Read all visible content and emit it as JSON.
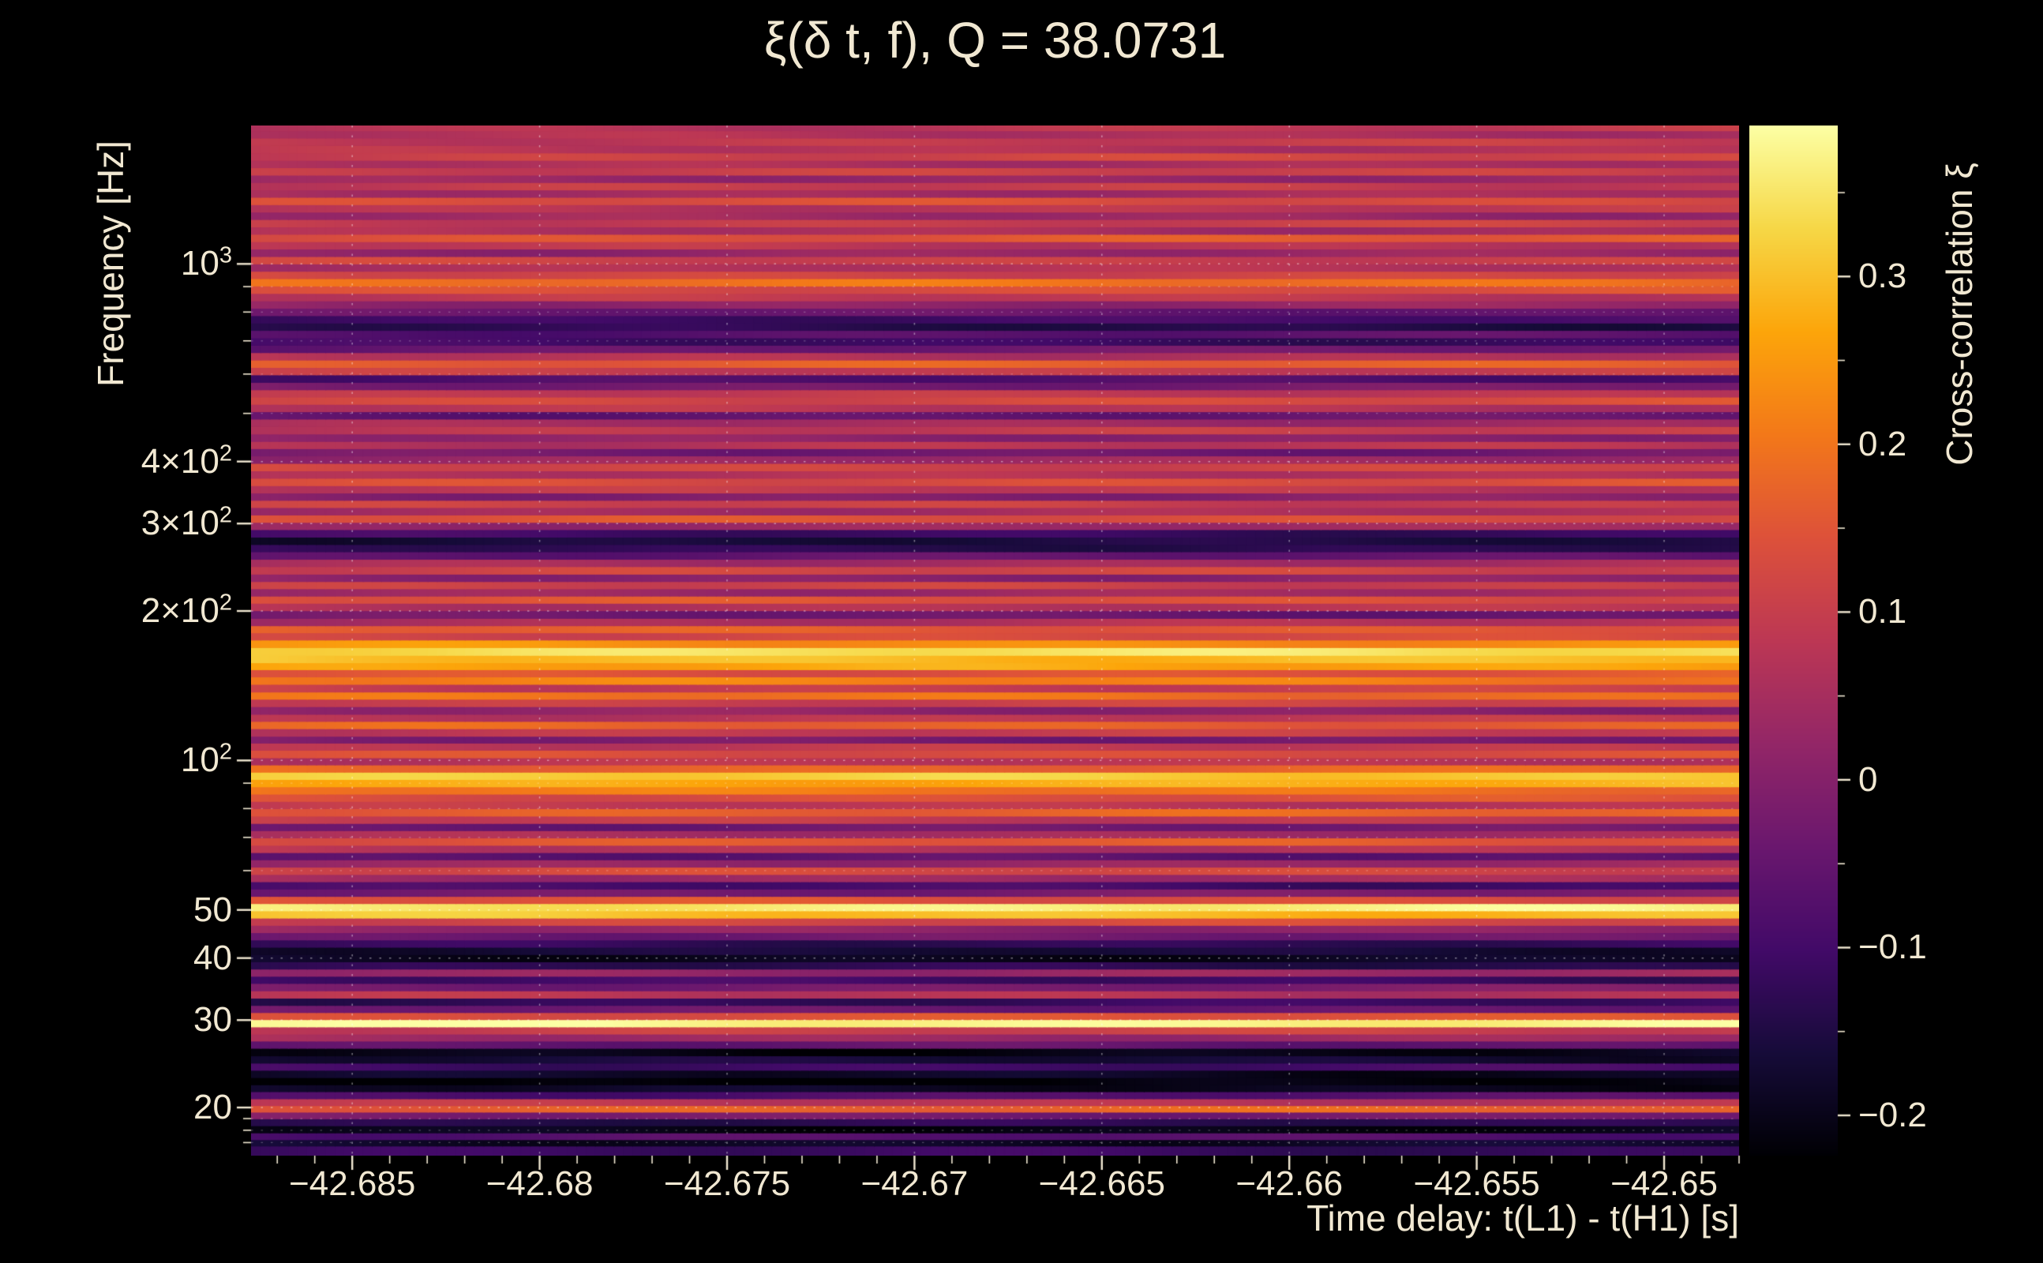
{
  "chart_data": {
    "type": "heatmap",
    "title": "ξ(δ t, f), Q = 38.0731",
    "xlabel": "Time delay: t(L1) - t(H1) [s]",
    "ylabel": "Frequency [Hz]",
    "colorbar_label": "Cross-correlation ξ",
    "background_color": "#000000",
    "text_color": "#f1e8d2",
    "grid": {
      "on": true,
      "color": "#ffffff",
      "style": "dotted"
    },
    "x_range": [
      -42.6877,
      -42.648
    ],
    "y_range_hz": [
      16,
      1900
    ],
    "y_scale": "log",
    "value_range": [
      -0.224,
      0.39
    ],
    "x_ticks": [
      -42.685,
      -42.68,
      -42.675,
      -42.67,
      -42.665,
      -42.66,
      -42.655,
      -42.65
    ],
    "x_tick_labels": [
      "−42.685",
      "−42.68",
      "−42.675",
      "−42.67",
      "−42.665",
      "−42.66",
      "−42.655",
      "−42.65"
    ],
    "x_minor_step": 0.001,
    "y_ticks": [
      {
        "f": 20,
        "base": "20",
        "exp": ""
      },
      {
        "f": 30,
        "base": "30",
        "exp": ""
      },
      {
        "f": 40,
        "base": "40",
        "exp": ""
      },
      {
        "f": 50,
        "base": "50",
        "exp": ""
      },
      {
        "f": 100,
        "base": "10",
        "exp": "2"
      },
      {
        "f": 200,
        "base": "2×10",
        "exp": "2"
      },
      {
        "f": 300,
        "base": "3×10",
        "exp": "2"
      },
      {
        "f": 400,
        "base": "4×10",
        "exp": "2"
      },
      {
        "f": 1000,
        "base": "10",
        "exp": "3"
      }
    ],
    "y_minor_ticks": [
      17,
      18,
      19,
      60,
      70,
      80,
      90,
      500,
      600,
      700,
      800,
      900
    ],
    "colorbar_ticks": [
      {
        "v": 0.3,
        "label": "0.3"
      },
      {
        "v": 0.2,
        "label": "0.2"
      },
      {
        "v": 0.1,
        "label": "0.1"
      },
      {
        "v": 0,
        "label": "0"
      },
      {
        "v": -0.1,
        "label": "−0.1"
      },
      {
        "v": -0.2,
        "label": "−0.2"
      }
    ],
    "colorbar_minor_step": 0.05,
    "colormap": [
      [
        0.0,
        "#000004"
      ],
      [
        0.1,
        "#160b39"
      ],
      [
        0.2,
        "#420a68"
      ],
      [
        0.3,
        "#6a176e"
      ],
      [
        0.4,
        "#932667"
      ],
      [
        0.5,
        "#bc3754"
      ],
      [
        0.6,
        "#dd513a"
      ],
      [
        0.7,
        "#f37819"
      ],
      [
        0.8,
        "#fca50a"
      ],
      [
        0.9,
        "#f6d746"
      ],
      [
        1.0,
        "#fcffa4"
      ]
    ],
    "rows_format": [
      "frequency_hz",
      "cross_correlation_xi"
    ],
    "rows": [
      [
        16.5,
        -0.12
      ],
      [
        17,
        -0.18
      ],
      [
        17.5,
        -0.08
      ],
      [
        18.1,
        -0.2
      ],
      [
        18.7,
        -0.14
      ],
      [
        19.3,
        -0.02
      ],
      [
        19.9,
        0.17
      ],
      [
        20.5,
        0.08
      ],
      [
        21.2,
        -0.08
      ],
      [
        21.9,
        -0.19
      ],
      [
        22.6,
        -0.22
      ],
      [
        23.4,
        -0.19
      ],
      [
        24.2,
        -0.1
      ],
      [
        25,
        -0.17
      ],
      [
        25.9,
        -0.2
      ],
      [
        26.8,
        -0.06
      ],
      [
        27.7,
        0.04
      ],
      [
        28.6,
        0.1
      ],
      [
        29.6,
        0.38
      ],
      [
        30.6,
        0.14
      ],
      [
        31.6,
        -0.04
      ],
      [
        32.7,
        -0.12
      ],
      [
        33.8,
        0.07
      ],
      [
        35,
        -0.02
      ],
      [
        36.2,
        -0.11
      ],
      [
        37.4,
        0.03
      ],
      [
        38.7,
        -0.14
      ],
      [
        40,
        -0.19
      ],
      [
        41.4,
        -0.17
      ],
      [
        42.8,
        -0.12
      ],
      [
        44.3,
        -0.04
      ],
      [
        45.8,
        0.02
      ],
      [
        47.4,
        0.12
      ],
      [
        49,
        0.3
      ],
      [
        50.7,
        0.36
      ],
      [
        52.4,
        0.14
      ],
      [
        54.2,
        -0.02
      ],
      [
        56.1,
        -0.1
      ],
      [
        58,
        0.04
      ],
      [
        60,
        0.12
      ],
      [
        62.1,
        0.03
      ],
      [
        64.2,
        -0.07
      ],
      [
        66.4,
        0.07
      ],
      [
        68.7,
        0.15
      ],
      [
        71.1,
        0.05
      ],
      [
        73.5,
        -0.04
      ],
      [
        76,
        0.09
      ],
      [
        78.7,
        0.17
      ],
      [
        81.4,
        0.08
      ],
      [
        84.2,
        0.14
      ],
      [
        87.1,
        0.2
      ],
      [
        90.1,
        0.28
      ],
      [
        93.2,
        0.31
      ],
      [
        96.4,
        0.18
      ],
      [
        99.7,
        0.07
      ],
      [
        103,
        0.14
      ],
      [
        107,
        0.08
      ],
      [
        110,
        -0.02
      ],
      [
        114,
        0.09
      ],
      [
        118,
        0.17
      ],
      [
        122,
        0.08
      ],
      [
        126,
        0.01
      ],
      [
        131,
        0.11
      ],
      [
        135,
        0.19
      ],
      [
        140,
        0.1
      ],
      [
        145,
        0.21
      ],
      [
        150,
        0.15
      ],
      [
        155,
        0.26
      ],
      [
        160,
        0.3
      ],
      [
        166,
        0.34
      ],
      [
        172,
        0.24
      ],
      [
        178,
        0.12
      ],
      [
        184,
        0.16
      ],
      [
        190,
        0.06
      ],
      [
        197,
        -0.04
      ],
      [
        204,
        0.07
      ],
      [
        211,
        0.14
      ],
      [
        218,
        0.04
      ],
      [
        226,
        0.1
      ],
      [
        233,
        0.01
      ],
      [
        242,
        0.11
      ],
      [
        250,
        0.05
      ],
      [
        259,
        -0.06
      ],
      [
        268,
        -0.13
      ],
      [
        277,
        -0.16
      ],
      [
        287,
        -0.11
      ],
      [
        297,
        0.03
      ],
      [
        307,
        0.14
      ],
      [
        318,
        0.05
      ],
      [
        329,
        0.1
      ],
      [
        340,
        0
      ],
      [
        352,
        0.08
      ],
      [
        364,
        0.14
      ],
      [
        377,
        0.06
      ],
      [
        390,
        0.12
      ],
      [
        404,
        0.03
      ],
      [
        418,
        -0.03
      ],
      [
        432,
        0.07
      ],
      [
        447,
        0.01
      ],
      [
        463,
        0.09
      ],
      [
        479,
        0.04
      ],
      [
        496,
        -0.05
      ],
      [
        513,
        0.07
      ],
      [
        531,
        0.13
      ],
      [
        549,
        0.08
      ],
      [
        568,
        -0.02
      ],
      [
        588,
        -0.09
      ],
      [
        609,
        0.1
      ],
      [
        630,
        0.16
      ],
      [
        652,
        0.07
      ],
      [
        675,
        -0.04
      ],
      [
        698,
        -0.11
      ],
      [
        723,
        -0.07
      ],
      [
        748,
        -0.14
      ],
      [
        774,
        -0.1
      ],
      [
        801,
        -0.05
      ],
      [
        829,
        0.02
      ],
      [
        858,
        0.08
      ],
      [
        888,
        0.14
      ],
      [
        919,
        0.19
      ],
      [
        951,
        0.12
      ],
      [
        984,
        0.06
      ],
      [
        1018,
        0.11
      ],
      [
        1054,
        0.02
      ],
      [
        1091,
        0.08
      ],
      [
        1129,
        0.15
      ],
      [
        1168,
        0.05
      ],
      [
        1209,
        0.1
      ],
      [
        1251,
        0.03
      ],
      [
        1295,
        0.08
      ],
      [
        1340,
        0.13
      ],
      [
        1387,
        0.05
      ],
      [
        1435,
        0.09
      ],
      [
        1485,
        0.03
      ],
      [
        1537,
        0.1
      ],
      [
        1591,
        0.06
      ],
      [
        1646,
        0.11
      ],
      [
        1704,
        0.07
      ],
      [
        1763,
        0.09
      ],
      [
        1825,
        0.06
      ],
      [
        1888,
        0.08
      ]
    ]
  }
}
